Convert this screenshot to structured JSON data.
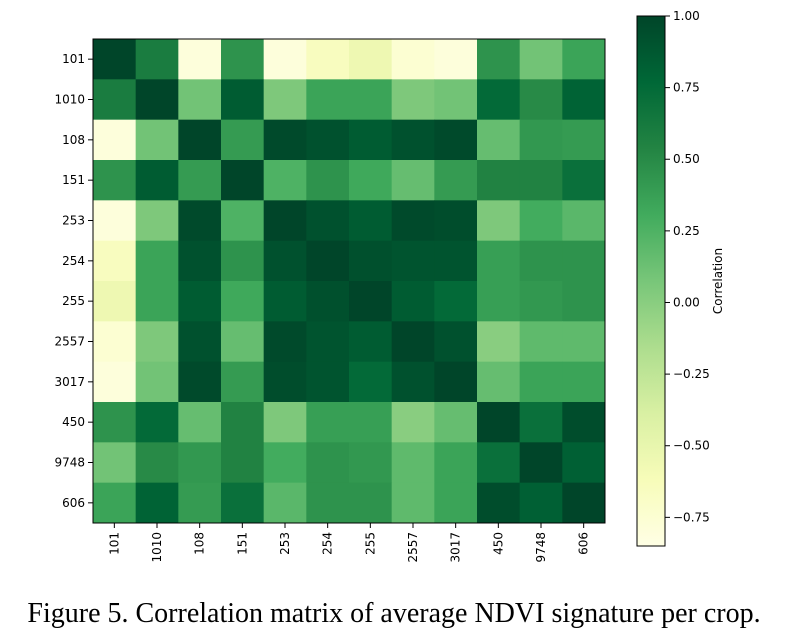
{
  "caption": "Figure 5. Correlation matrix of average NDVI signature per crop.",
  "chart_data": {
    "type": "heatmap",
    "x_labels": [
      "101",
      "1010",
      "108",
      "151",
      "253",
      "254",
      "255",
      "2557",
      "3017",
      "450",
      "9748",
      "606"
    ],
    "y_labels": [
      "101",
      "1010",
      "108",
      "151",
      "253",
      "254",
      "255",
      "2557",
      "3017",
      "450",
      "9748",
      "606"
    ],
    "values": [
      [
        1.0,
        0.6,
        -0.8,
        0.45,
        -0.8,
        -0.65,
        -0.55,
        -0.75,
        -0.8,
        0.45,
        0.1,
        0.35
      ],
      [
        0.6,
        1.0,
        0.1,
        0.85,
        0.05,
        0.35,
        0.35,
        0.05,
        0.1,
        0.75,
        0.5,
        0.8
      ],
      [
        -0.8,
        0.1,
        1.0,
        0.4,
        0.97,
        0.92,
        0.85,
        0.92,
        0.97,
        0.15,
        0.42,
        0.4
      ],
      [
        0.45,
        0.85,
        0.4,
        1.0,
        0.25,
        0.45,
        0.32,
        0.15,
        0.4,
        0.55,
        0.55,
        0.7
      ],
      [
        -0.8,
        0.05,
        0.97,
        0.25,
        1.0,
        0.92,
        0.85,
        0.97,
        0.95,
        0.05,
        0.3,
        0.2
      ],
      [
        -0.65,
        0.35,
        0.92,
        0.45,
        0.92,
        1.0,
        0.93,
        0.9,
        0.9,
        0.38,
        0.45,
        0.45
      ],
      [
        -0.55,
        0.35,
        0.85,
        0.32,
        0.85,
        0.93,
        1.0,
        0.85,
        0.75,
        0.38,
        0.42,
        0.45
      ],
      [
        -0.75,
        0.05,
        0.92,
        0.15,
        0.97,
        0.9,
        0.85,
        1.0,
        0.92,
        0.0,
        0.18,
        0.18
      ],
      [
        -0.8,
        0.1,
        0.97,
        0.4,
        0.95,
        0.9,
        0.75,
        0.92,
        1.0,
        0.15,
        0.35,
        0.35
      ],
      [
        0.45,
        0.75,
        0.15,
        0.55,
        0.05,
        0.38,
        0.38,
        0.0,
        0.15,
        1.0,
        0.7,
        0.95
      ],
      [
        0.1,
        0.5,
        0.42,
        0.55,
        0.3,
        0.45,
        0.42,
        0.18,
        0.35,
        0.7,
        1.0,
        0.82
      ],
      [
        0.35,
        0.8,
        0.4,
        0.7,
        0.2,
        0.45,
        0.45,
        0.18,
        0.35,
        0.95,
        0.82,
        1.0
      ]
    ],
    "colorbar": {
      "label": "Correlation",
      "range": [
        -0.85,
        1.0
      ],
      "ticks": [
        1.0,
        0.75,
        0.5,
        0.25,
        0.0,
        -0.25,
        -0.5,
        -0.75
      ],
      "tick_labels": [
        "1.00",
        "0.75",
        "0.50",
        "0.25",
        "0.00",
        "−0.25",
        "−0.50",
        "−0.75"
      ],
      "colormap": "YlGn",
      "colors": [
        "#ffffe5",
        "#f7fcb9",
        "#d9f0a3",
        "#addd8e",
        "#78c679",
        "#41ab5d",
        "#238443",
        "#006837",
        "#004529"
      ]
    }
  }
}
